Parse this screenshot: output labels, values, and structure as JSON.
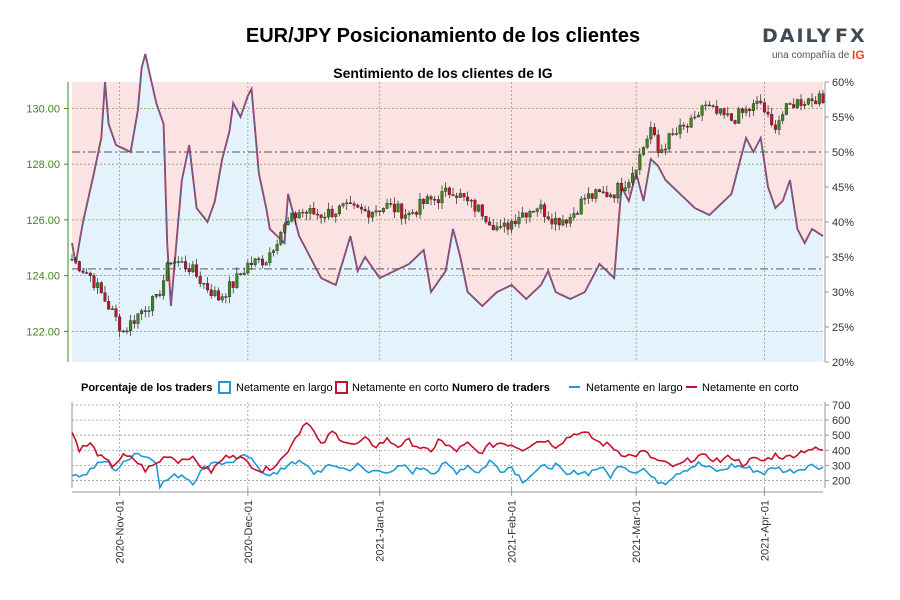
{
  "header": {
    "title": "EUR/JPY Posicionamiento de los clientes",
    "subtitle": "Sentimiento de los clientes de IG"
  },
  "logo": {
    "brand_left": "DAILY",
    "brand_right": "FX",
    "tagline": "una compañía de",
    "ig": "IG"
  },
  "legend": {
    "pct_title": "Porcentaje de los traders",
    "pct_long": "Netamente en largo",
    "pct_short": "Netamente en corto",
    "num_title": "Numero de traders",
    "num_long": "Netamente en largo",
    "num_short": "Netamente en corto"
  },
  "colors": {
    "long": "#1f9ad6",
    "short": "#c8102e",
    "long_fill": "#e4f2fb",
    "short_fill": "#fbe3e3",
    "up_candle": "#3a8a1a",
    "down_candle": "#c8102e",
    "axis_green": "#3a8a1a"
  },
  "chart_data": [
    {
      "type": "candlestick",
      "name": "price",
      "y_ticks": [
        "122.00",
        "124.00",
        "126.00",
        "128.00",
        "130.00"
      ],
      "y_range": [
        120.9,
        130.95
      ],
      "right_ticks": [
        "20%",
        "25%",
        "30%",
        "35%",
        "40%",
        "45%",
        "50%",
        "55%",
        "60%"
      ],
      "right_range": [
        20,
        60
      ],
      "price_keypoints": [
        [
          0,
          124.6
        ],
        [
          5,
          124.0
        ],
        [
          10,
          122.9
        ],
        [
          14,
          122.0
        ],
        [
          16,
          122.3
        ],
        [
          20,
          122.9
        ],
        [
          23,
          123.1
        ],
        [
          27,
          124.6
        ],
        [
          32,
          124.3
        ],
        [
          36,
          123.7
        ],
        [
          40,
          123.2
        ],
        [
          44,
          123.7
        ],
        [
          48,
          124.4
        ],
        [
          53,
          124.6
        ],
        [
          57,
          125.6
        ],
        [
          62,
          126.3
        ],
        [
          68,
          126.2
        ],
        [
          74,
          126.4
        ],
        [
          80,
          126.3
        ],
        [
          86,
          126.5
        ],
        [
          92,
          126.2
        ],
        [
          96,
          126.6
        ],
        [
          100,
          126.8
        ],
        [
          104,
          127.1
        ],
        [
          108,
          126.6
        ],
        [
          112,
          126.3
        ],
        [
          117,
          125.6
        ],
        [
          122,
          126.2
        ],
        [
          127,
          126.5
        ],
        [
          132,
          126.0
        ],
        [
          136,
          126.1
        ],
        [
          140,
          126.8
        ],
        [
          144,
          126.9
        ],
        [
          148,
          127.0
        ],
        [
          152,
          127.5
        ],
        [
          155,
          128.3
        ],
        [
          158,
          129.3
        ],
        [
          160,
          128.4
        ],
        [
          163,
          128.9
        ],
        [
          166,
          129.2
        ],
        [
          170,
          129.5
        ],
        [
          172,
          130.1
        ],
        [
          176,
          129.8
        ],
        [
          180,
          129.6
        ],
        [
          184,
          129.9
        ],
        [
          188,
          130.2
        ],
        [
          191,
          129.3
        ],
        [
          194,
          129.8
        ],
        [
          197,
          130.2
        ],
        [
          200,
          130.3
        ],
        [
          203,
          130.4
        ],
        [
          205,
          130.2
        ]
      ],
      "pct_long_keypoints": [
        [
          0,
          37
        ],
        [
          1,
          34
        ],
        [
          3,
          40
        ],
        [
          6,
          47
        ],
        [
          8,
          52
        ],
        [
          9,
          60
        ],
        [
          10,
          54
        ],
        [
          12,
          51
        ],
        [
          16,
          50
        ],
        [
          18,
          56
        ],
        [
          19,
          62
        ],
        [
          20,
          64
        ],
        [
          23,
          57
        ],
        [
          25,
          54
        ],
        [
          26,
          37
        ],
        [
          27,
          28
        ],
        [
          30,
          46
        ],
        [
          32,
          51
        ],
        [
          34,
          42
        ],
        [
          37,
          40
        ],
        [
          39,
          43
        ],
        [
          41,
          49
        ],
        [
          43,
          53
        ],
        [
          44,
          57
        ],
        [
          46,
          55
        ],
        [
          48,
          58
        ],
        [
          49,
          59
        ],
        [
          51,
          47
        ],
        [
          53,
          42
        ],
        [
          54,
          39
        ],
        [
          56,
          38
        ],
        [
          58,
          37
        ],
        [
          59,
          44
        ],
        [
          62,
          38
        ],
        [
          65,
          35
        ],
        [
          66,
          34
        ],
        [
          68,
          32
        ],
        [
          72,
          31
        ],
        [
          76,
          38
        ],
        [
          78,
          33
        ],
        [
          80,
          35
        ],
        [
          84,
          32
        ],
        [
          88,
          33
        ],
        [
          92,
          34
        ],
        [
          96,
          36
        ],
        [
          98,
          30
        ],
        [
          102,
          33
        ],
        [
          104,
          39
        ],
        [
          106,
          35
        ],
        [
          108,
          30
        ],
        [
          112,
          28
        ],
        [
          116,
          30
        ],
        [
          120,
          31
        ],
        [
          124,
          29
        ],
        [
          128,
          31
        ],
        [
          130,
          33
        ],
        [
          132,
          30
        ],
        [
          136,
          29
        ],
        [
          140,
          30
        ],
        [
          144,
          34
        ],
        [
          148,
          32
        ],
        [
          150,
          45
        ],
        [
          152,
          43
        ],
        [
          154,
          47
        ],
        [
          156,
          43
        ],
        [
          158,
          49
        ],
        [
          160,
          48
        ],
        [
          162,
          46
        ],
        [
          166,
          44
        ],
        [
          170,
          42
        ],
        [
          174,
          41
        ],
        [
          178,
          43
        ],
        [
          180,
          44
        ],
        [
          182,
          48
        ],
        [
          184,
          52
        ],
        [
          186,
          50
        ],
        [
          188,
          52
        ],
        [
          190,
          45
        ],
        [
          192,
          42
        ],
        [
          194,
          43
        ],
        [
          196,
          46
        ],
        [
          198,
          39
        ],
        [
          200,
          37
        ],
        [
          202,
          39
        ],
        [
          205,
          38
        ]
      ],
      "num_long_keypoints": [
        [
          0,
          250
        ],
        [
          3,
          230
        ],
        [
          6,
          290
        ],
        [
          9,
          330
        ],
        [
          12,
          270
        ],
        [
          15,
          330
        ],
        [
          17,
          390
        ],
        [
          20,
          360
        ],
        [
          23,
          330
        ],
        [
          24,
          170
        ],
        [
          27,
          220
        ],
        [
          30,
          240
        ],
        [
          33,
          190
        ],
        [
          36,
          280
        ],
        [
          39,
          330
        ],
        [
          42,
          310
        ],
        [
          45,
          340
        ],
        [
          48,
          360
        ],
        [
          50,
          300
        ],
        [
          53,
          250
        ],
        [
          56,
          240
        ],
        [
          60,
          330
        ],
        [
          63,
          310
        ],
        [
          66,
          250
        ],
        [
          69,
          280
        ],
        [
          72,
          300
        ],
        [
          75,
          270
        ],
        [
          78,
          300
        ],
        [
          81,
          250
        ],
        [
          84,
          280
        ],
        [
          87,
          240
        ],
        [
          90,
          300
        ],
        [
          93,
          260
        ],
        [
          96,
          290
        ],
        [
          99,
          250
        ],
        [
          102,
          310
        ],
        [
          105,
          260
        ],
        [
          108,
          300
        ],
        [
          111,
          250
        ],
        [
          114,
          330
        ],
        [
          117,
          270
        ],
        [
          120,
          290
        ],
        [
          123,
          200
        ],
        [
          126,
          250
        ],
        [
          129,
          290
        ],
        [
          132,
          300
        ],
        [
          135,
          230
        ],
        [
          138,
          260
        ],
        [
          141,
          250
        ],
        [
          144,
          290
        ],
        [
          147,
          230
        ],
        [
          150,
          310
        ],
        [
          153,
          260
        ],
        [
          156,
          280
        ],
        [
          159,
          200
        ],
        [
          162,
          190
        ],
        [
          165,
          250
        ],
        [
          168,
          280
        ],
        [
          171,
          310
        ],
        [
          174,
          280
        ],
        [
          177,
          260
        ],
        [
          180,
          300
        ],
        [
          183,
          290
        ],
        [
          186,
          270
        ],
        [
          189,
          250
        ],
        [
          192,
          290
        ],
        [
          195,
          260
        ],
        [
          198,
          270
        ],
        [
          201,
          300
        ],
        [
          205,
          290
        ]
      ],
      "num_short_keypoints": [
        [
          0,
          520
        ],
        [
          2,
          410
        ],
        [
          5,
          440
        ],
        [
          8,
          350
        ],
        [
          11,
          300
        ],
        [
          14,
          360
        ],
        [
          17,
          340
        ],
        [
          20,
          270
        ],
        [
          23,
          310
        ],
        [
          26,
          370
        ],
        [
          29,
          330
        ],
        [
          32,
          360
        ],
        [
          35,
          300
        ],
        [
          38,
          260
        ],
        [
          41,
          340
        ],
        [
          44,
          380
        ],
        [
          47,
          330
        ],
        [
          50,
          290
        ],
        [
          52,
          260
        ],
        [
          55,
          300
        ],
        [
          58,
          360
        ],
        [
          60,
          450
        ],
        [
          62,
          520
        ],
        [
          64,
          600
        ],
        [
          66,
          520
        ],
        [
          68,
          430
        ],
        [
          71,
          520
        ],
        [
          74,
          470
        ],
        [
          77,
          430
        ],
        [
          80,
          470
        ],
        [
          83,
          430
        ],
        [
          86,
          470
        ],
        [
          89,
          430
        ],
        [
          92,
          460
        ],
        [
          95,
          420
        ],
        [
          98,
          380
        ],
        [
          100,
          480
        ],
        [
          102,
          430
        ],
        [
          105,
          400
        ],
        [
          108,
          440
        ],
        [
          111,
          380
        ],
        [
          114,
          430
        ],
        [
          117,
          450
        ],
        [
          120,
          440
        ],
        [
          123,
          410
        ],
        [
          126,
          450
        ],
        [
          129,
          470
        ],
        [
          132,
          430
        ],
        [
          135,
          480
        ],
        [
          138,
          520
        ],
        [
          141,
          500
        ],
        [
          144,
          450
        ],
        [
          147,
          430
        ],
        [
          150,
          380
        ],
        [
          153,
          360
        ],
        [
          156,
          390
        ],
        [
          159,
          340
        ],
        [
          162,
          310
        ],
        [
          165,
          290
        ],
        [
          168,
          330
        ],
        [
          171,
          360
        ],
        [
          174,
          350
        ],
        [
          177,
          330
        ],
        [
          180,
          360
        ],
        [
          183,
          310
        ],
        [
          186,
          340
        ],
        [
          189,
          330
        ],
        [
          192,
          370
        ],
        [
          195,
          350
        ],
        [
          198,
          380
        ],
        [
          201,
          410
        ],
        [
          205,
          400
        ]
      ]
    },
    {
      "type": "line",
      "name": "traders",
      "y_ticks": [
        "200",
        "300",
        "400",
        "500",
        "600",
        "700"
      ],
      "y_range": [
        150,
        720
      ],
      "x_dates": [
        "2020-Nov-01",
        "2020-Dec-01",
        "2021-Jan-01",
        "2021-Feb-01",
        "2021-Mar-01",
        "2021-Apr-01"
      ],
      "x_index": [
        13,
        48,
        84,
        120,
        154,
        189
      ],
      "n_points": 206
    }
  ]
}
